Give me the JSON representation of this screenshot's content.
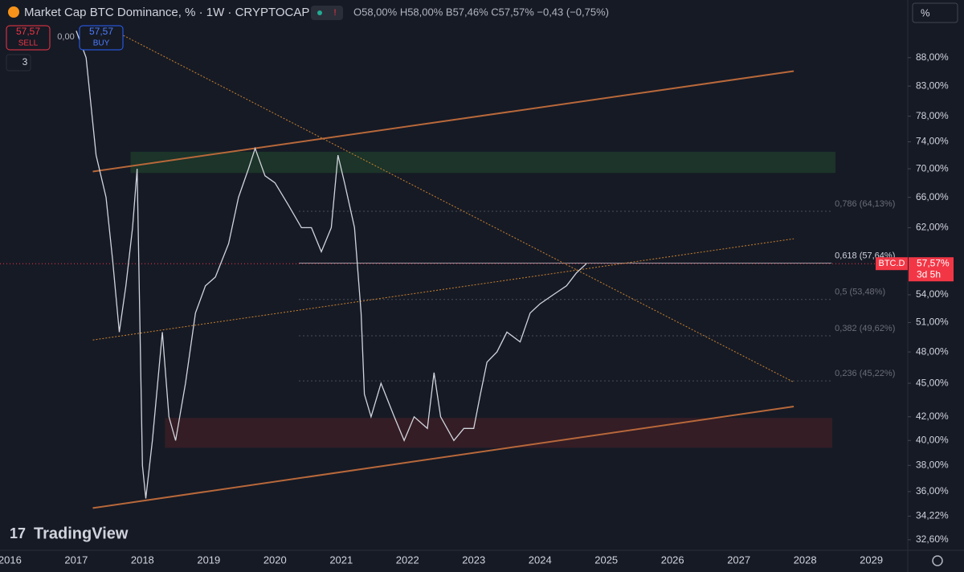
{
  "chart_data": {
    "type": "line",
    "title": "Market Cap BTC Dominance, % · 1W · CRYPTOCAP",
    "ohlc_text": "O58,00% H58,00% B57,46% C57,57% −0,43 (−0,75%)",
    "sell_price": "57,57",
    "sell_label": "SELL",
    "spread": "0,00",
    "buy_price": "57,57",
    "buy_label": "BUY",
    "indicators_count": "3",
    "scale_button": "%",
    "brand": "TradingView",
    "symbol": "BTC.D",
    "countdown": "3d 5h",
    "last_price": {
      "value": 57.57,
      "label": "57,57%"
    },
    "log_scale": true,
    "xlim": [
      2015.85,
      2029.55
    ],
    "xticks": [
      2016,
      2017,
      2018,
      2019,
      2020,
      2021,
      2022,
      2023,
      2024,
      2025,
      2026,
      2027,
      2028,
      2029
    ],
    "ylim": [
      31.9,
      99.1
    ],
    "yticks": [
      {
        "value": 32.6,
        "label": "32,60%"
      },
      {
        "value": 34.22,
        "label": "34,22%"
      },
      {
        "value": 36,
        "label": "36,00%"
      },
      {
        "value": 38,
        "label": "38,00%"
      },
      {
        "value": 40,
        "label": "40,00%"
      },
      {
        "value": 42,
        "label": "42,00%"
      },
      {
        "value": 45,
        "label": "45,00%"
      },
      {
        "value": 48,
        "label": "48,00%"
      },
      {
        "value": 51,
        "label": "51,00%"
      },
      {
        "value": 54,
        "label": "54,00%"
      },
      {
        "value": 62,
        "label": "62,00%"
      },
      {
        "value": 66,
        "label": "66,00%"
      },
      {
        "value": 70,
        "label": "70,00%"
      },
      {
        "value": 74,
        "label": "74,00%"
      },
      {
        "value": 78,
        "label": "78,00%"
      },
      {
        "value": 83,
        "label": "83,00%"
      },
      {
        "value": 88,
        "label": "88,00%"
      }
    ],
    "series": [
      {
        "name": "BTC.D",
        "color": "#d1d4dc",
        "x": [
          2017.0,
          2017.15,
          2017.3,
          2017.45,
          2017.55,
          2017.65,
          2017.75,
          2017.85,
          2017.92,
          2018.0,
          2018.05,
          2018.15,
          2018.3,
          2018.4,
          2018.5,
          2018.65,
          2018.8,
          2018.95,
          2019.1,
          2019.3,
          2019.45,
          2019.6,
          2019.7,
          2019.85,
          2020.0,
          2020.2,
          2020.4,
          2020.55,
          2020.7,
          2020.85,
          2020.95,
          2021.05,
          2021.2,
          2021.3,
          2021.35,
          2021.45,
          2021.6,
          2021.8,
          2021.95,
          2022.1,
          2022.3,
          2022.4,
          2022.5,
          2022.7,
          2022.85,
          2023.0,
          2023.1,
          2023.2,
          2023.35,
          2023.5,
          2023.7,
          2023.85,
          2024.0,
          2024.2,
          2024.4,
          2024.55,
          2024.7
        ],
        "values": [
          93,
          88,
          72,
          66,
          58,
          50,
          55,
          62,
          70,
          38,
          35.5,
          40,
          50,
          42,
          40,
          45,
          52,
          55,
          56,
          60,
          66,
          70,
          73,
          69,
          68,
          65,
          62,
          62,
          59,
          62,
          72,
          68,
          62,
          52,
          44,
          42,
          45,
          42,
          40,
          42,
          41,
          46,
          42,
          40,
          41,
          41,
          44,
          47,
          48,
          50,
          49,
          52,
          53,
          54,
          55,
          56.5,
          57.57
        ]
      }
    ],
    "trendlines": [
      {
        "color": "#b8683a",
        "style": "solid",
        "x": [
          2017.25,
          2027.83
        ],
        "values": [
          69.6,
          85.6
        ]
      },
      {
        "color": "#b8683a",
        "style": "solid",
        "x": [
          2017.25,
          2027.83
        ],
        "values": [
          34.8,
          42.9
        ]
      },
      {
        "color": "#c9822e",
        "style": "dotted",
        "x": [
          2017.25,
          2027.83
        ],
        "values": [
          49.2,
          60.6
        ]
      },
      {
        "color": "#c9822e",
        "style": "dotted",
        "x": [
          2017.67,
          2027.83
        ],
        "values": [
          92.4,
          45.1
        ]
      }
    ],
    "zones": [
      {
        "color": "#1d3a2a",
        "x": [
          2017.82,
          2028.46
        ],
        "values": [
          72.5,
          69.4
        ]
      },
      {
        "color": "#3a1f26",
        "x": [
          2018.34,
          2028.41
        ],
        "values": [
          41.9,
          39.4
        ]
      }
    ],
    "fib_start": 2020.36,
    "fib_end": 2028.4,
    "fib_levels": [
      {
        "value": 64.13,
        "label": "0,786 (64,13%)"
      },
      {
        "value": 57.64,
        "label": "0,618 (57,64%)"
      },
      {
        "value": 53.48,
        "label": "0,5 (53,48%)"
      },
      {
        "value": 49.62,
        "label": "0,382 (49,62%)"
      },
      {
        "value": 45.22,
        "label": "0,236 (45,22%)"
      }
    ]
  }
}
